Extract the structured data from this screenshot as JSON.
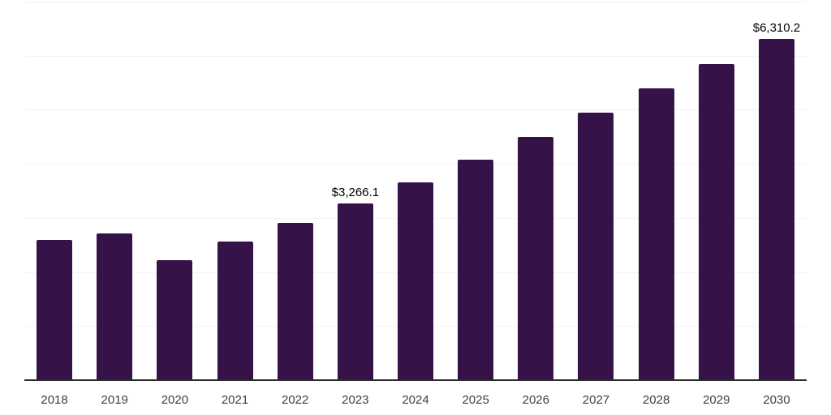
{
  "chart_data": {
    "type": "bar",
    "title": "",
    "xlabel": "",
    "ylabel": "",
    "categories": [
      "2018",
      "2019",
      "2020",
      "2021",
      "2022",
      "2023",
      "2024",
      "2025",
      "2026",
      "2027",
      "2028",
      "2029",
      "2030"
    ],
    "values": [
      2590,
      2710,
      2220,
      2560,
      2905,
      3266.1,
      3660,
      4080,
      4500,
      4950,
      5400,
      5850,
      6310.2
    ],
    "data_labels": {
      "2023": "$3,266.1",
      "2030": "$6,310.2"
    },
    "ylim": [
      0,
      7000
    ],
    "gridline_step": 1000,
    "grid": "horizontal-only",
    "legend": "none",
    "y_axis_ticks": "hidden",
    "colors": {
      "bar": "#351349",
      "axis_line": "#2b2b2b",
      "gridline": "#f4f4f4",
      "data_label_text": "#000000",
      "tick_label_text": "#3d3d3d",
      "background": "#ffffff"
    }
  }
}
